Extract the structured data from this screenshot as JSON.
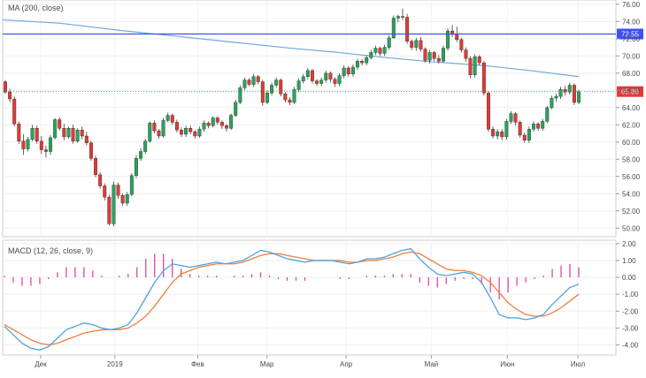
{
  "chart_data": [
    {
      "type": "candlestick",
      "title": "MA (200, close)",
      "ylim": [
        49,
        76.5
      ],
      "yticks": [
        "76.00",
        "74.00",
        "72.00",
        "70.00",
        "68.00",
        "66.00",
        "64.00",
        "62.00",
        "60.00",
        "58.00",
        "56.00",
        "54.00",
        "52.00",
        "50.00"
      ],
      "ytick_values": [
        76,
        74,
        72,
        70,
        68,
        66,
        64,
        62,
        60,
        58,
        56,
        54,
        52,
        50
      ],
      "level_line": {
        "value": 72.55,
        "label": "72.55",
        "color": "#3f51f5"
      },
      "last_price": {
        "value": 65.86,
        "label": "65.86",
        "color": "#e53935"
      },
      "colors": {
        "up": "#26a65b",
        "down": "#e53935",
        "ma": "#6fa8dc"
      },
      "ohlc": [
        [
          67.0,
          67.2,
          65.6,
          65.8
        ],
        [
          65.8,
          66.2,
          64.6,
          65.0
        ],
        [
          65.0,
          65.3,
          61.8,
          62.1
        ],
        [
          62.1,
          62.4,
          59.8,
          60.1
        ],
        [
          60.1,
          60.9,
          58.5,
          59.2
        ],
        [
          59.2,
          60.6,
          58.9,
          60.3
        ],
        [
          60.3,
          62.0,
          60.1,
          61.6
        ],
        [
          61.6,
          61.9,
          59.8,
          60.1
        ],
        [
          60.1,
          60.7,
          58.6,
          59.1
        ],
        [
          59.1,
          59.6,
          58.2,
          58.9
        ],
        [
          58.9,
          60.8,
          58.5,
          60.5
        ],
        [
          60.5,
          62.8,
          60.3,
          62.6
        ],
        [
          62.6,
          62.9,
          61.3,
          61.6
        ],
        [
          61.6,
          62.1,
          60.2,
          60.6
        ],
        [
          60.6,
          61.8,
          60.4,
          61.6
        ],
        [
          61.6,
          62.0,
          59.8,
          60.1
        ],
        [
          60.1,
          61.6,
          59.9,
          61.4
        ],
        [
          61.4,
          61.8,
          60.3,
          60.7
        ],
        [
          60.7,
          61.2,
          59.6,
          59.9
        ],
        [
          59.9,
          60.1,
          57.8,
          58.1
        ],
        [
          58.1,
          58.4,
          55.9,
          56.2
        ],
        [
          56.2,
          56.5,
          54.6,
          54.9
        ],
        [
          54.9,
          55.2,
          53.2,
          53.6
        ],
        [
          53.6,
          53.9,
          50.3,
          50.5
        ],
        [
          50.5,
          55.4,
          50.2,
          55.0
        ],
        [
          55.0,
          55.3,
          53.4,
          53.8
        ],
        [
          53.8,
          54.0,
          52.6,
          52.9
        ],
        [
          52.9,
          54.2,
          52.6,
          53.9
        ],
        [
          53.9,
          56.4,
          53.7,
          56.1
        ],
        [
          56.1,
          58.5,
          55.8,
          58.1
        ],
        [
          58.1,
          59.3,
          57.8,
          58.9
        ],
        [
          58.9,
          60.4,
          58.6,
          60.1
        ],
        [
          60.1,
          62.4,
          59.9,
          62.2
        ],
        [
          62.2,
          62.5,
          61.0,
          61.3
        ],
        [
          61.3,
          61.5,
          60.4,
          60.7
        ],
        [
          60.7,
          62.8,
          60.5,
          62.5
        ],
        [
          62.5,
          63.4,
          62.3,
          63.1
        ],
        [
          63.1,
          63.3,
          62.0,
          62.3
        ],
        [
          62.3,
          62.6,
          61.1,
          61.4
        ],
        [
          61.4,
          61.7,
          60.6,
          60.9
        ],
        [
          60.9,
          61.9,
          60.6,
          61.6
        ],
        [
          61.6,
          61.9,
          60.9,
          61.2
        ],
        [
          61.2,
          61.4,
          60.4,
          60.7
        ],
        [
          60.7,
          61.8,
          60.5,
          61.5
        ],
        [
          61.5,
          62.5,
          61.2,
          62.2
        ],
        [
          62.2,
          62.4,
          61.6,
          61.9
        ],
        [
          61.9,
          63.0,
          61.7,
          62.8
        ],
        [
          62.8,
          63.0,
          62.0,
          62.3
        ],
        [
          62.3,
          62.5,
          61.5,
          61.9
        ],
        [
          61.9,
          62.1,
          61.2,
          61.6
        ],
        [
          61.6,
          63.3,
          61.4,
          63.1
        ],
        [
          63.1,
          64.9,
          62.9,
          64.6
        ],
        [
          64.6,
          66.6,
          64.4,
          66.3
        ],
        [
          66.3,
          67.5,
          66.0,
          67.2
        ],
        [
          67.2,
          67.4,
          66.5,
          66.7
        ],
        [
          66.7,
          67.9,
          66.4,
          67.6
        ],
        [
          67.6,
          67.8,
          66.7,
          67.0
        ],
        [
          67.0,
          67.2,
          64.2,
          64.6
        ],
        [
          64.6,
          66.0,
          64.4,
          65.7
        ],
        [
          65.7,
          66.9,
          65.4,
          66.6
        ],
        [
          66.6,
          67.5,
          66.3,
          67.2
        ],
        [
          67.2,
          67.4,
          65.3,
          65.6
        ],
        [
          65.6,
          65.8,
          64.6,
          64.9
        ],
        [
          64.9,
          65.2,
          64.3,
          64.6
        ],
        [
          64.6,
          66.4,
          64.4,
          66.1
        ],
        [
          66.1,
          67.4,
          65.8,
          67.1
        ],
        [
          67.1,
          67.9,
          66.8,
          67.6
        ],
        [
          67.6,
          68.6,
          67.3,
          68.3
        ],
        [
          68.3,
          68.5,
          66.8,
          67.1
        ],
        [
          67.1,
          67.3,
          66.5,
          66.8
        ],
        [
          66.8,
          67.5,
          66.5,
          67.2
        ],
        [
          67.2,
          68.3,
          66.9,
          68.0
        ],
        [
          68.0,
          68.2,
          66.9,
          67.3
        ],
        [
          67.3,
          67.5,
          66.4,
          66.8
        ],
        [
          66.8,
          68.0,
          66.5,
          67.7
        ],
        [
          67.7,
          68.9,
          67.4,
          68.6
        ],
        [
          68.6,
          68.8,
          67.6,
          67.9
        ],
        [
          67.9,
          69.0,
          67.6,
          68.7
        ],
        [
          68.7,
          69.7,
          68.4,
          69.4
        ],
        [
          69.4,
          69.6,
          68.9,
          69.2
        ],
        [
          69.2,
          70.1,
          68.9,
          69.8
        ],
        [
          69.8,
          70.7,
          69.6,
          70.4
        ],
        [
          70.4,
          71.2,
          70.1,
          70.9
        ],
        [
          70.9,
          71.1,
          70.0,
          70.3
        ],
        [
          70.3,
          71.3,
          70.0,
          71.0
        ],
        [
          71.0,
          72.4,
          70.7,
          72.1
        ],
        [
          72.1,
          74.7,
          72.0,
          74.4
        ],
        [
          74.4,
          74.8,
          73.9,
          74.6
        ],
        [
          74.6,
          75.5,
          74.2,
          74.5
        ],
        [
          74.5,
          74.9,
          71.4,
          71.7
        ],
        [
          71.7,
          71.9,
          70.7,
          71.0
        ],
        [
          71.0,
          72.1,
          70.6,
          71.8
        ],
        [
          71.8,
          72.2,
          70.5,
          70.8
        ],
        [
          70.8,
          71.0,
          69.2,
          69.5
        ],
        [
          69.5,
          70.7,
          69.1,
          70.4
        ],
        [
          70.4,
          70.6,
          69.4,
          69.7
        ],
        [
          69.7,
          70.1,
          69.1,
          69.4
        ],
        [
          69.4,
          71.2,
          69.2,
          70.9
        ],
        [
          70.9,
          73.2,
          70.6,
          72.9
        ],
        [
          72.9,
          73.6,
          72.2,
          72.5
        ],
        [
          72.5,
          73.4,
          71.6,
          71.9
        ],
        [
          71.9,
          72.1,
          70.4,
          70.7
        ],
        [
          70.7,
          71.0,
          69.3,
          69.7
        ],
        [
          69.7,
          70.0,
          67.4,
          67.8
        ],
        [
          67.8,
          70.2,
          67.5,
          69.9
        ],
        [
          69.9,
          70.1,
          68.9,
          69.2
        ],
        [
          69.2,
          69.4,
          65.4,
          65.7
        ],
        [
          65.7,
          65.9,
          61.2,
          61.5
        ],
        [
          61.5,
          61.8,
          60.4,
          60.7
        ],
        [
          60.7,
          61.5,
          60.3,
          61.2
        ],
        [
          61.2,
          61.5,
          60.2,
          60.6
        ],
        [
          60.6,
          62.7,
          60.3,
          62.4
        ],
        [
          62.4,
          63.6,
          62.1,
          63.3
        ],
        [
          63.3,
          63.5,
          61.9,
          62.3
        ],
        [
          62.3,
          62.5,
          60.5,
          60.8
        ],
        [
          60.8,
          61.1,
          59.9,
          60.2
        ],
        [
          60.2,
          61.8,
          59.9,
          61.5
        ],
        [
          61.5,
          62.4,
          61.2,
          62.1
        ],
        [
          62.1,
          62.3,
          61.3,
          61.6
        ],
        [
          61.6,
          62.7,
          61.3,
          62.4
        ],
        [
          62.4,
          64.2,
          62.2,
          64.0
        ],
        [
          64.0,
          65.4,
          63.8,
          65.1
        ],
        [
          65.1,
          65.6,
          64.7,
          65.3
        ],
        [
          65.3,
          66.4,
          65.0,
          66.1
        ],
        [
          66.1,
          66.5,
          65.4,
          65.8
        ],
        [
          65.8,
          66.9,
          65.5,
          66.6
        ],
        [
          66.6,
          66.8,
          64.3,
          64.6
        ],
        [
          64.6,
          66.1,
          64.4,
          65.86
        ]
      ],
      "ma_line": [
        [
          0,
          74.2
        ],
        [
          24,
          73.8
        ],
        [
          48,
          73.0
        ],
        [
          72,
          72.3
        ],
        [
          96,
          71.6
        ],
        [
          120,
          70.9
        ],
        [
          140,
          70.4
        ],
        [
          160,
          69.8
        ],
        [
          180,
          69.3
        ],
        [
          200,
          68.9
        ],
        [
          220,
          68.3
        ],
        [
          240,
          67.6
        ]
      ]
    },
    {
      "type": "line",
      "title": "MACD (12, 26, close, 9)",
      "ylim": [
        -4.6,
        2.2
      ],
      "yticks": [
        "2.00",
        "1.00",
        "0.00",
        "-1.00",
        "-2.00",
        "-3.00",
        "-4.00"
      ],
      "ytick_values": [
        2,
        1,
        0,
        -1,
        -2,
        -3,
        -4
      ],
      "colors": {
        "macd": "#4fa3e0",
        "signal": "#f07f3c",
        "histogram": "#e0479a"
      },
      "macd": [
        -2.9,
        -3.4,
        -3.9,
        -4.2,
        -4.3,
        -4.1,
        -3.6,
        -3.1,
        -2.9,
        -2.7,
        -2.8,
        -3.0,
        -3.1,
        -3.0,
        -2.8,
        -2.1,
        -1.2,
        -0.3,
        0.4,
        0.8,
        0.7,
        0.6,
        0.7,
        0.8,
        0.9,
        0.8,
        0.9,
        1.0,
        1.3,
        1.6,
        1.5,
        1.3,
        1.1,
        1.0,
        0.9,
        1.0,
        1.0,
        1.0,
        0.9,
        0.8,
        0.9,
        1.1,
        1.1,
        1.2,
        1.4,
        1.6,
        1.7,
        1.1,
        0.6,
        0.2,
        0.1,
        0.2,
        0.3,
        0.2,
        -0.3,
        -1.2,
        -2.2,
        -2.4,
        -2.4,
        -2.5,
        -2.4,
        -2.2,
        -1.6,
        -1.1,
        -0.6,
        -0.4
      ],
      "signal": [
        -2.8,
        -3.1,
        -3.4,
        -3.7,
        -3.9,
        -4.0,
        -3.9,
        -3.7,
        -3.5,
        -3.3,
        -3.2,
        -3.1,
        -3.1,
        -3.1,
        -3.0,
        -2.7,
        -2.3,
        -1.7,
        -1.0,
        -0.3,
        0.2,
        0.4,
        0.6,
        0.7,
        0.8,
        0.8,
        0.8,
        0.9,
        1.1,
        1.3,
        1.4,
        1.4,
        1.3,
        1.2,
        1.1,
        1.0,
        1.0,
        1.0,
        1.0,
        0.9,
        0.9,
        1.0,
        1.0,
        1.1,
        1.2,
        1.4,
        1.5,
        1.4,
        1.1,
        0.8,
        0.5,
        0.4,
        0.4,
        0.3,
        0.1,
        -0.3,
        -0.9,
        -1.5,
        -1.9,
        -2.2,
        -2.3,
        -2.3,
        -2.1,
        -1.8,
        -1.4,
        -1.0
      ],
      "histogram": [
        0.1,
        -0.3,
        -0.5,
        -0.5,
        -0.4,
        -0.1,
        0.3,
        0.6,
        0.6,
        0.6,
        0.4,
        0.1,
        0.0,
        0.1,
        0.2,
        0.6,
        1.1,
        1.4,
        1.4,
        1.1,
        0.5,
        0.2,
        0.1,
        0.1,
        0.1,
        0.0,
        0.1,
        0.1,
        0.2,
        0.3,
        0.1,
        -0.1,
        -0.2,
        -0.2,
        -0.2,
        0.0,
        0.0,
        0.0,
        -0.1,
        -0.1,
        0.0,
        0.1,
        0.1,
        0.1,
        0.2,
        0.2,
        0.2,
        -0.3,
        -0.5,
        -0.6,
        -0.4,
        -0.2,
        -0.1,
        -0.1,
        -0.4,
        -0.9,
        -1.3,
        -0.9,
        -0.5,
        -0.3,
        -0.1,
        0.1,
        0.5,
        0.7,
        0.8,
        0.6
      ]
    }
  ],
  "x_axis": {
    "labels": [
      "Дек",
      "2019",
      "Фев",
      "Мар",
      "Апр",
      "Май",
      "Июн",
      "Июл"
    ]
  }
}
